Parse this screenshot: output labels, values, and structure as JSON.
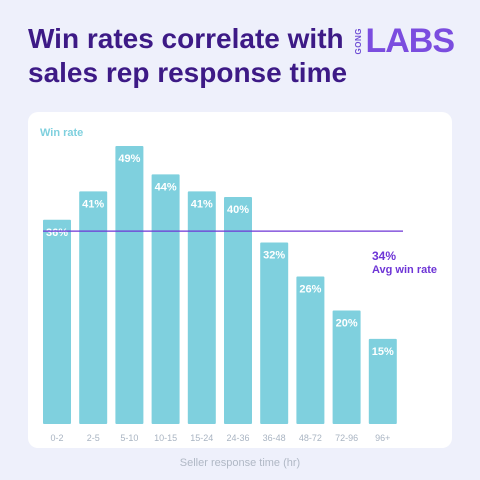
{
  "header": {
    "title": "Win rates correlate with sales rep response time",
    "logo_small": "GONG",
    "logo_main": "LABS"
  },
  "colors": {
    "bar": "#7fd0de",
    "avg_line": "#6e35d6",
    "title": "#3d1a86",
    "label": "#ffffff",
    "tick": "#a9b4c2"
  },
  "chart_data": {
    "type": "bar",
    "title": "",
    "ylabel": "Win rate",
    "xlabel": "Seller response time (hr)",
    "categories": [
      "0-2",
      "2-5",
      "5-10",
      "10-15",
      "15-24",
      "24-36",
      "36-48",
      "48-72",
      "72-96",
      "96+"
    ],
    "values": [
      36,
      41,
      49,
      44,
      41,
      40,
      32,
      26,
      20,
      15
    ],
    "value_labels": [
      "36%",
      "41%",
      "49%",
      "44%",
      "41%",
      "40%",
      "32%",
      "26%",
      "20%",
      "15%"
    ],
    "average": {
      "value": 34,
      "value_label": "34%",
      "label": "Avg win rate"
    },
    "ylim": [
      0,
      55
    ],
    "grid": false,
    "legend": "none"
  }
}
